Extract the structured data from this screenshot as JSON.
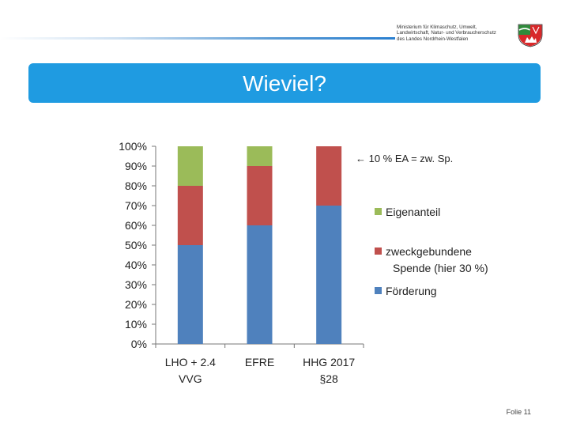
{
  "header": {
    "ministry_lines": [
      "Ministerium für Klimaschutz, Umwelt,",
      "Landwirtschaft, Natur- und Verbraucherschutz",
      "des Landes Nordrhein-Westfalen"
    ],
    "crest_icon": "nrw-coat-of-arms-icon"
  },
  "title": "Wieviel?",
  "slide_number": "Folie 11",
  "colors": {
    "title_bar": "#1f9be1",
    "foerderung": "#4f81bd",
    "spende": "#c0504d",
    "eigenanteil": "#9bbb59"
  },
  "chart_data": {
    "type": "bar",
    "stacked": true,
    "categories": [
      [
        "LHO + 2.4",
        "VVG"
      ],
      [
        "EFRE"
      ],
      [
        "HHG 2017",
        "§28"
      ]
    ],
    "series": [
      {
        "name": "Förderung",
        "values": [
          50,
          60,
          70
        ],
        "color": "#4f81bd"
      },
      {
        "name": "zweckgebundene Spende (hier 30 %)",
        "legend_lines": [
          "zweckgebundene",
          "Spende (hier 30 %)"
        ],
        "values": [
          30,
          30,
          30
        ],
        "color": "#c0504d"
      },
      {
        "name": "Eigenanteil",
        "values": [
          20,
          10,
          0
        ],
        "color": "#9bbb59"
      }
    ],
    "legend_order": [
      2,
      1,
      0
    ],
    "ylim": [
      0,
      100
    ],
    "yticks": [
      "0%",
      "10%",
      "20%",
      "30%",
      "40%",
      "50%",
      "60%",
      "70%",
      "80%",
      "90%",
      "100%"
    ],
    "grid": false,
    "annotation": "← 10 % EA = zw. Sp."
  }
}
